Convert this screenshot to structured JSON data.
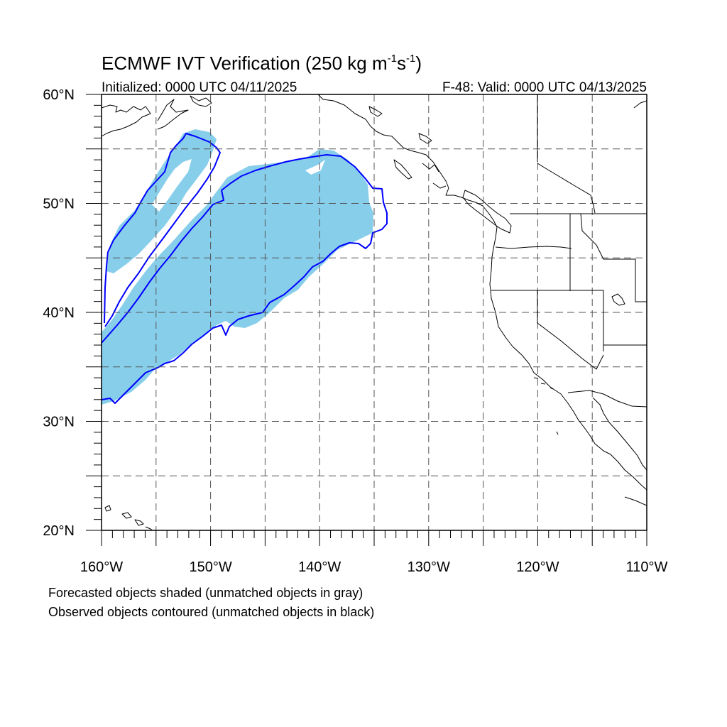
{
  "figure": {
    "title_main": "ECMWF IVT Verification (250 kg m",
    "title_exp1": "-1",
    "title_mid": "s",
    "title_exp2": "-1",
    "title_end": ")",
    "subtitle_left": "Initialized: 0000 UTC 04/11/2025",
    "subtitle_right": "F-48: Valid: 0000 UTC 04/13/2025"
  },
  "map": {
    "lon_range": [
      -160,
      -110
    ],
    "lat_range": [
      20,
      60
    ],
    "lon_ticks": [
      {
        "value": -160,
        "label": "160°W"
      },
      {
        "value": -150,
        "label": "150°W"
      },
      {
        "value": -140,
        "label": "140°W"
      },
      {
        "value": -130,
        "label": "130°W"
      },
      {
        "value": -120,
        "label": "120°W"
      },
      {
        "value": -110,
        "label": "110°W"
      }
    ],
    "lat_ticks": [
      {
        "value": 60,
        "label": "60°N"
      },
      {
        "value": 50,
        "label": "50°N"
      },
      {
        "value": 40,
        "label": "40°N"
      },
      {
        "value": 30,
        "label": "30°N"
      },
      {
        "value": 20,
        "label": "20°N"
      }
    ],
    "grid_lons": [
      -155,
      -150,
      -145,
      -140,
      -135,
      -130,
      -125,
      -120,
      -115
    ],
    "grid_lats": [
      25,
      30,
      35,
      40,
      45,
      50,
      55
    ],
    "grid": true,
    "colors": {
      "forecast_fill": "#87ceeb",
      "observed_contour": "#0000ff",
      "coastline": "#000000",
      "grid": "#555555"
    }
  },
  "legend": {
    "line1": "Forecasted objects shaded (unmatched objects in gray)",
    "line2": "Observed objects contoured (unmatched objects in black)"
  }
}
